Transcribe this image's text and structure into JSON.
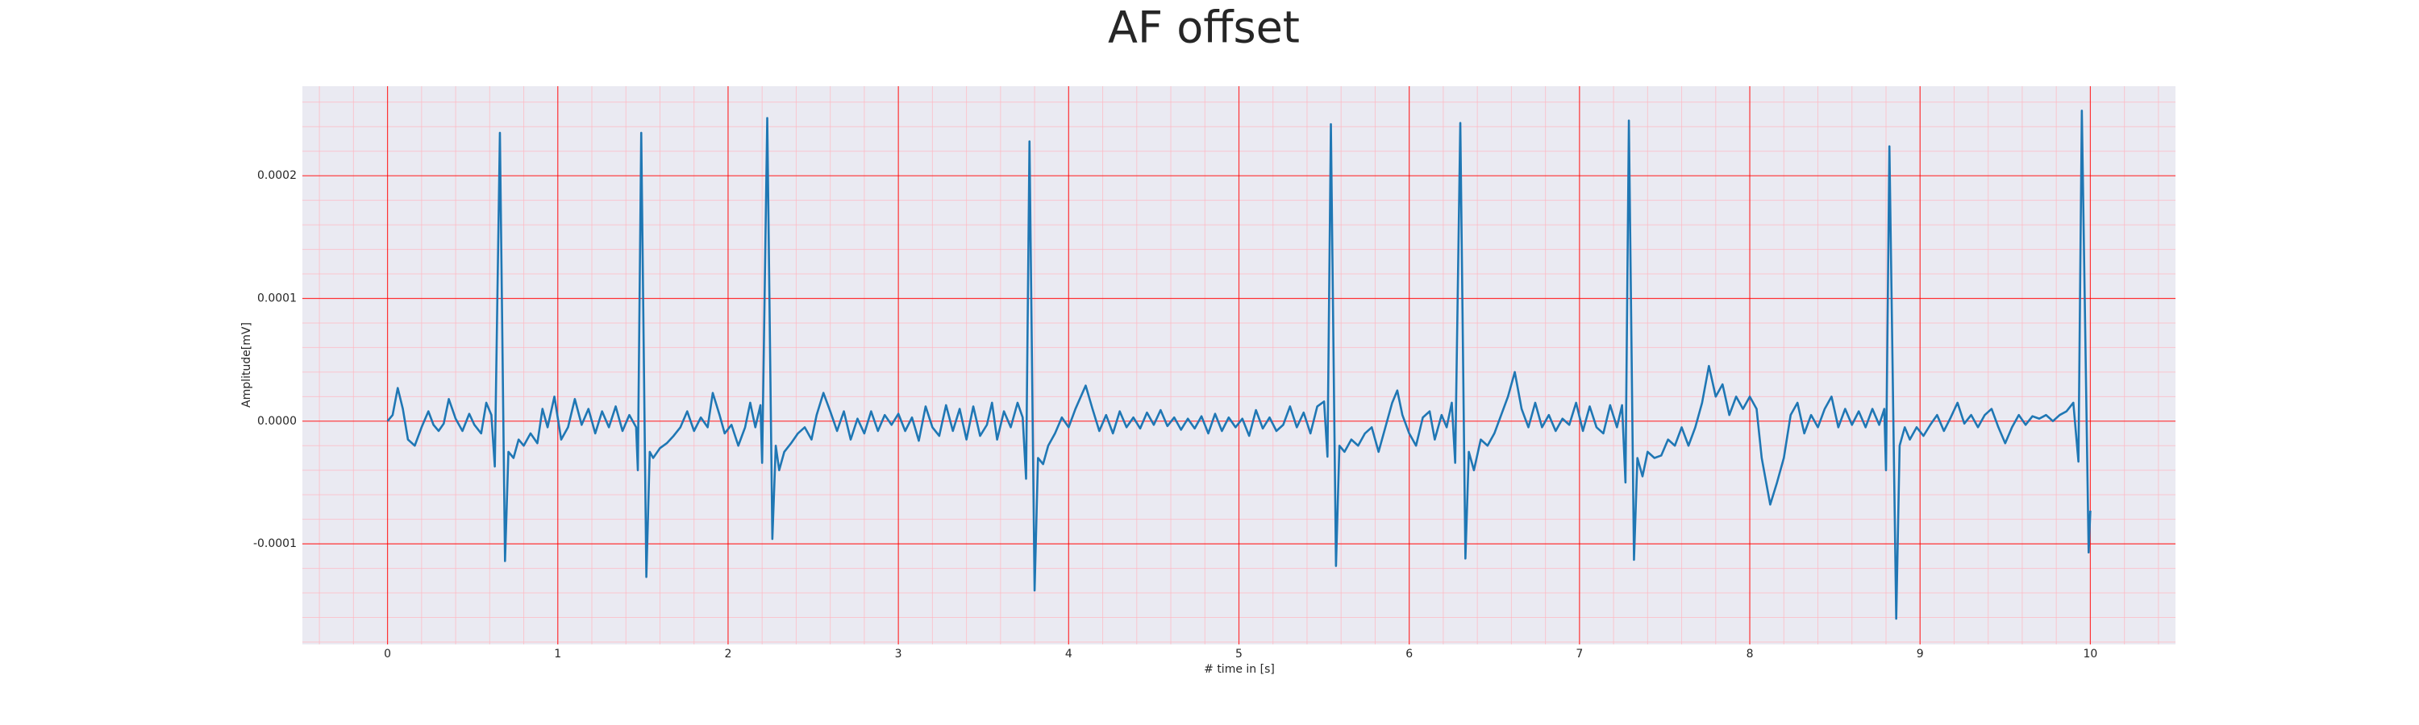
{
  "chart_data": {
    "type": "line",
    "title": "AF offset",
    "xlabel": "# time in [s]",
    "ylabel": "Amplitude[mV]",
    "xlim": [
      -0.5,
      10.5
    ],
    "ylim": [
      -0.000182,
      0.000273
    ],
    "xticks": [
      0,
      1,
      2,
      3,
      4,
      5,
      6,
      7,
      8,
      9,
      10
    ],
    "yticks": [
      -0.0001,
      {
        "value": 0,
        "label": "0.0000"
      },
      0.0001,
      0.0002
    ],
    "grid": true,
    "minor_xstep": 0.2,
    "minor_ystep": 2e-05,
    "background": "#eaeaf2",
    "grid_color": "#ff0000",
    "minor_grid_color": "#ffb6c1",
    "color": "#1f77b4",
    "x": [
      0,
      0.03,
      0.06,
      0.09,
      0.12,
      0.16,
      0.2,
      0.24,
      0.27,
      0.3,
      0.33,
      0.36,
      0.4,
      0.44,
      0.48,
      0.51,
      0.55,
      0.58,
      0.61,
      0.63,
      0.66,
      0.69,
      0.71,
      0.74,
      0.77,
      0.8,
      0.84,
      0.88,
      0.91,
      0.94,
      0.98,
      1.02,
      1.06,
      1.1,
      1.14,
      1.18,
      1.22,
      1.26,
      1.3,
      1.34,
      1.38,
      1.42,
      1.46,
      1.47,
      1.49,
      1.52,
      1.54,
      1.56,
      1.6,
      1.64,
      1.68,
      1.72,
      1.76,
      1.8,
      1.84,
      1.88,
      1.91,
      1.95,
      1.98,
      2.02,
      2.06,
      2.1,
      2.13,
      2.16,
      2.19,
      2.2,
      2.23,
      2.26,
      2.28,
      2.3,
      2.33,
      2.37,
      2.41,
      2.45,
      2.49,
      2.52,
      2.56,
      2.6,
      2.64,
      2.68,
      2.72,
      2.76,
      2.8,
      2.84,
      2.88,
      2.92,
      2.96,
      3.0,
      3.04,
      3.08,
      3.12,
      3.16,
      3.2,
      3.24,
      3.28,
      3.32,
      3.36,
      3.4,
      3.44,
      3.48,
      3.52,
      3.55,
      3.58,
      3.62,
      3.66,
      3.7,
      3.73,
      3.75,
      3.77,
      3.8,
      3.82,
      3.85,
      3.88,
      3.92,
      3.96,
      4.0,
      4.04,
      4.1,
      4.14,
      4.18,
      4.22,
      4.26,
      4.3,
      4.34,
      4.38,
      4.42,
      4.46,
      4.5,
      4.54,
      4.58,
      4.62,
      4.66,
      4.7,
      4.74,
      4.78,
      4.82,
      4.86,
      4.9,
      4.94,
      4.98,
      5.02,
      5.06,
      5.1,
      5.14,
      5.18,
      5.22,
      5.26,
      5.3,
      5.34,
      5.38,
      5.42,
      5.46,
      5.5,
      5.52,
      5.54,
      5.57,
      5.59,
      5.62,
      5.66,
      5.7,
      5.74,
      5.78,
      5.82,
      5.86,
      5.9,
      5.93,
      5.96,
      6.0,
      6.04,
      6.08,
      6.12,
      6.15,
      6.19,
      6.22,
      6.25,
      6.27,
      6.3,
      6.33,
      6.35,
      6.38,
      6.42,
      6.46,
      6.5,
      6.54,
      6.58,
      6.62,
      6.66,
      6.7,
      6.74,
      6.78,
      6.82,
      6.86,
      6.9,
      6.94,
      6.98,
      7.02,
      7.06,
      7.1,
      7.14,
      7.18,
      7.22,
      7.25,
      7.27,
      7.29,
      7.32,
      7.34,
      7.37,
      7.4,
      7.44,
      7.48,
      7.52,
      7.56,
      7.6,
      7.64,
      7.68,
      7.72,
      7.76,
      7.8,
      7.84,
      7.88,
      7.92,
      7.96,
      8.0,
      8.04,
      8.07,
      8.12,
      8.16,
      8.2,
      8.24,
      8.28,
      8.32,
      8.36,
      8.4,
      8.44,
      8.48,
      8.52,
      8.56,
      8.6,
      8.64,
      8.68,
      8.72,
      8.76,
      8.79,
      8.8,
      8.82,
      8.86,
      8.88,
      8.91,
      8.94,
      8.98,
      9.02,
      9.06,
      9.1,
      9.14,
      9.18,
      9.22,
      9.26,
      9.3,
      9.34,
      9.38,
      9.42,
      9.46,
      9.5,
      9.54,
      9.58,
      9.62,
      9.66,
      9.7,
      9.74,
      9.78,
      9.82,
      9.86,
      9.9,
      9.93,
      9.95,
      9.99,
      10.0
    ],
    "values": [
      0,
      5e-06,
      2.7e-05,
      1e-05,
      -1.5e-05,
      -2e-05,
      -5e-06,
      8e-06,
      -3e-06,
      -8e-06,
      -2e-06,
      1.8e-05,
      2e-06,
      -8e-06,
      6e-06,
      -3e-06,
      -1e-05,
      1.5e-05,
      5e-06,
      -3.7e-05,
      0.000235,
      -0.000114,
      -2.5e-05,
      -3e-05,
      -1.5e-05,
      -2e-05,
      -1e-05,
      -1.8e-05,
      1e-05,
      -5e-06,
      2e-05,
      -1.5e-05,
      -5e-06,
      1.8e-05,
      -3e-06,
      1e-05,
      -1e-05,
      8e-06,
      -5e-06,
      1.2e-05,
      -8e-06,
      5e-06,
      -5e-06,
      -4e-05,
      0.000235,
      -0.000127,
      -2.5e-05,
      -3e-05,
      -2.2e-05,
      -1.8e-05,
      -1.2e-05,
      -5e-06,
      8e-06,
      -8e-06,
      3e-06,
      -5e-06,
      2.3e-05,
      5e-06,
      -1e-05,
      -3e-06,
      -2e-05,
      -5e-06,
      1.5e-05,
      -5e-06,
      1.3e-05,
      -3.4e-05,
      0.000247,
      -9.6e-05,
      -2e-05,
      -4e-05,
      -2.5e-05,
      -1.8e-05,
      -1e-05,
      -5e-06,
      -1.5e-05,
      5e-06,
      2.3e-05,
      8e-06,
      -8e-06,
      8e-06,
      -1.5e-05,
      2e-06,
      -1e-05,
      8e-06,
      -8e-06,
      5e-06,
      -3e-06,
      6e-06,
      -8e-06,
      3e-06,
      -1.6e-05,
      1.2e-05,
      -5e-06,
      -1.2e-05,
      1.3e-05,
      -8e-06,
      1e-05,
      -1.5e-05,
      1.2e-05,
      -1.2e-05,
      -3e-06,
      1.5e-05,
      -1.5e-05,
      8e-06,
      -5e-06,
      1.5e-05,
      3e-06,
      -4.7e-05,
      0.000228,
      -0.000138,
      -3e-05,
      -3.5e-05,
      -2e-05,
      -1e-05,
      3e-06,
      -5e-06,
      1e-05,
      2.9e-05,
      1e-05,
      -8e-06,
      5e-06,
      -1e-05,
      8e-06,
      -5e-06,
      3e-06,
      -6e-06,
      7e-06,
      -3e-06,
      9e-06,
      -4e-06,
      3e-06,
      -7e-06,
      2e-06,
      -6e-06,
      4e-06,
      -1e-05,
      6e-06,
      -8e-06,
      3e-06,
      -5e-06,
      2e-06,
      -1.2e-05,
      9e-06,
      -6e-06,
      3e-06,
      -8e-06,
      -3e-06,
      1.2e-05,
      -5e-06,
      7e-06,
      -1e-05,
      1.2e-05,
      1.6e-05,
      -2.9e-05,
      0.000242,
      -0.000118,
      -2e-05,
      -2.5e-05,
      -1.5e-05,
      -2e-05,
      -1e-05,
      -5e-06,
      -2.5e-05,
      -5e-06,
      1.5e-05,
      2.5e-05,
      5e-06,
      -1e-05,
      -2e-05,
      3e-06,
      8e-06,
      -1.5e-05,
      5e-06,
      -5e-06,
      1.5e-05,
      -3.4e-05,
      0.000243,
      -0.000112,
      -2.5e-05,
      -4e-05,
      -1.5e-05,
      -2e-05,
      -1e-05,
      5e-06,
      2e-05,
      4e-05,
      1e-05,
      -5e-06,
      1.5e-05,
      -5e-06,
      5e-06,
      -8e-06,
      2e-06,
      -3e-06,
      1.5e-05,
      -8e-06,
      1.2e-05,
      -5e-06,
      -1e-05,
      1.3e-05,
      -5e-06,
      1.3e-05,
      -5e-05,
      0.000245,
      -0.000113,
      -3e-05,
      -4.5e-05,
      -2.5e-05,
      -3e-05,
      -2.8e-05,
      -1.5e-05,
      -2e-05,
      -5e-06,
      -2e-05,
      -5e-06,
      1.5e-05,
      4.5e-05,
      2e-05,
      3e-05,
      5e-06,
      2e-05,
      1e-05,
      2e-05,
      1e-05,
      -3e-05,
      -6.8e-05,
      -5e-05,
      -3e-05,
      5e-06,
      1.5e-05,
      -1e-05,
      5e-06,
      -5e-06,
      1e-05,
      2e-05,
      -5e-06,
      1e-05,
      -3e-06,
      8e-06,
      -5e-06,
      1e-05,
      -3e-06,
      1e-05,
      -4e-05,
      0.000224,
      -0.000161,
      -2e-05,
      -5e-06,
      -1.5e-05,
      -5e-06,
      -1.2e-05,
      -3e-06,
      5e-06,
      -8e-06,
      3e-06,
      1.5e-05,
      -2e-06,
      5e-06,
      -5e-06,
      5e-06,
      1e-05,
      -5e-06,
      -1.8e-05,
      -5e-06,
      5e-06,
      -3e-06,
      4e-06,
      2e-06,
      5e-06,
      0,
      5e-06,
      8e-06,
      1.5e-05,
      -3.3e-05,
      0.000253,
      -0.000107,
      -7.3e-05
    ]
  }
}
